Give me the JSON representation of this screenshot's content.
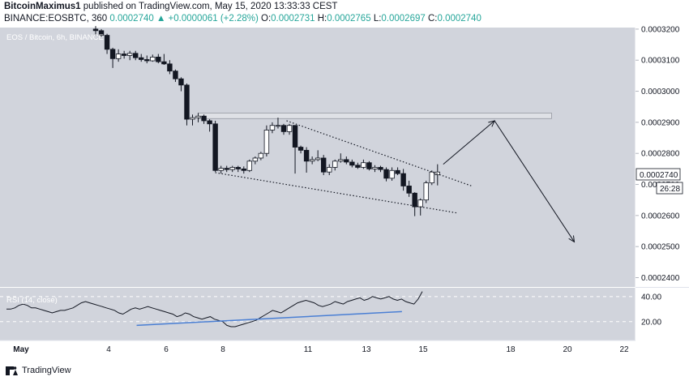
{
  "header": {
    "author": "BitcoinMaximus1",
    "published": "published on TradingView.com, May 15, 2020 13:33:33 CEST",
    "symbol": "BINANCE:EOSBTC, 360",
    "price": "0.0002740",
    "change": "▲ +0.0000061 (+2.28%)",
    "o_label": "O:",
    "o_value": "0.0002731",
    "h_label": "H:",
    "h_value": "0.0002765",
    "l_label": "L:",
    "l_value": "0.0002697",
    "c_label": "C:",
    "c_value": "0.0002740"
  },
  "footer": {
    "brand": "TradingView"
  },
  "colors": {
    "background": "#d1d4dc",
    "up_candle": "#ffffff",
    "down_candle": "#131722",
    "rsi_line": "#131722",
    "divergence_line": "#4a7fd4",
    "box_fill": "#dfe1e6"
  },
  "chart_data": {
    "type": "candlestick",
    "title": "EOS / Bitcoin, 6h, BINANCE",
    "y_ticks": [
      "0.0003200",
      "0.0003100",
      "0.0003000",
      "0.0002900",
      "0.0002800",
      "0.0002700",
      "0.0002600",
      "0.0002500",
      "0.0002400"
    ],
    "ylim": [
      0.000237,
      0.0003205
    ],
    "current_price_label": "0.0002740",
    "countdown_label": "26:28",
    "x_ticks": [
      "May",
      "4",
      "6",
      "8",
      "11",
      "13",
      "15",
      "18",
      "20",
      "22"
    ],
    "candles": [
      {
        "o": 0.00032,
        "h": 0.000321,
        "l": 0.000318,
        "c": 0.0003195
      },
      {
        "o": 0.0003195,
        "h": 0.00032,
        "l": 0.0003175,
        "c": 0.000318
      },
      {
        "o": 0.000318,
        "h": 0.0003185,
        "l": 0.000312,
        "c": 0.0003135
      },
      {
        "o": 0.0003135,
        "h": 0.000314,
        "l": 0.0003075,
        "c": 0.0003105
      },
      {
        "o": 0.0003105,
        "h": 0.0003135,
        "l": 0.0003095,
        "c": 0.000312
      },
      {
        "o": 0.000312,
        "h": 0.000313,
        "l": 0.0003105,
        "c": 0.0003115
      },
      {
        "o": 0.0003115,
        "h": 0.000313,
        "l": 0.00031,
        "c": 0.0003122
      },
      {
        "o": 0.0003122,
        "h": 0.000313,
        "l": 0.00031,
        "c": 0.0003108
      },
      {
        "o": 0.0003108,
        "h": 0.000312,
        "l": 0.0003095,
        "c": 0.0003102
      },
      {
        "o": 0.0003102,
        "h": 0.0003115,
        "l": 0.000309,
        "c": 0.0003098
      },
      {
        "o": 0.0003098,
        "h": 0.0003118,
        "l": 0.0003095,
        "c": 0.000311
      },
      {
        "o": 0.000311,
        "h": 0.000312,
        "l": 0.000309,
        "c": 0.0003095
      },
      {
        "o": 0.0003095,
        "h": 0.000312,
        "l": 0.0003085,
        "c": 0.0003088
      },
      {
        "o": 0.0003088,
        "h": 0.00031,
        "l": 0.0003055,
        "c": 0.0003065
      },
      {
        "o": 0.0003065,
        "h": 0.000307,
        "l": 0.000303,
        "c": 0.000304
      },
      {
        "o": 0.000304,
        "h": 0.0003045,
        "l": 0.0003,
        "c": 0.000302
      },
      {
        "o": 0.000302,
        "h": 0.0003025,
        "l": 0.000289,
        "c": 0.000291
      },
      {
        "o": 0.000291,
        "h": 0.0002925,
        "l": 0.000289,
        "c": 0.0002915
      },
      {
        "o": 0.0002915,
        "h": 0.000293,
        "l": 0.00029,
        "c": 0.000292
      },
      {
        "o": 0.000292,
        "h": 0.0002925,
        "l": 0.0002895,
        "c": 0.0002905
      },
      {
        "o": 0.0002905,
        "h": 0.000291,
        "l": 0.000287,
        "c": 0.0002895
      },
      {
        "o": 0.0002895,
        "h": 0.0002905,
        "l": 0.000274,
        "c": 0.0002745
      },
      {
        "o": 0.0002745,
        "h": 0.000276,
        "l": 0.0002735,
        "c": 0.0002752
      },
      {
        "o": 0.0002752,
        "h": 0.000276,
        "l": 0.000274,
        "c": 0.0002748
      },
      {
        "o": 0.0002748,
        "h": 0.000276,
        "l": 0.000274,
        "c": 0.0002755
      },
      {
        "o": 0.0002755,
        "h": 0.000276,
        "l": 0.000274,
        "c": 0.000275
      },
      {
        "o": 0.000275,
        "h": 0.0002758,
        "l": 0.0002735,
        "c": 0.0002745
      },
      {
        "o": 0.0002745,
        "h": 0.000278,
        "l": 0.000274,
        "c": 0.0002775
      },
      {
        "o": 0.0002775,
        "h": 0.000279,
        "l": 0.0002765,
        "c": 0.0002785
      },
      {
        "o": 0.0002785,
        "h": 0.0002805,
        "l": 0.0002778,
        "c": 0.00028
      },
      {
        "o": 0.00028,
        "h": 0.000289,
        "l": 0.000279,
        "c": 0.0002875
      },
      {
        "o": 0.0002875,
        "h": 0.00029,
        "l": 0.0002865,
        "c": 0.000289
      },
      {
        "o": 0.000289,
        "h": 0.0002915,
        "l": 0.000288,
        "c": 0.000289
      },
      {
        "o": 0.000289,
        "h": 0.0002895,
        "l": 0.000286,
        "c": 0.000287
      },
      {
        "o": 0.000287,
        "h": 0.0002895,
        "l": 0.000286,
        "c": 0.000289
      },
      {
        "o": 0.000289,
        "h": 0.000289,
        "l": 0.0002735,
        "c": 0.000282
      },
      {
        "o": 0.000282,
        "h": 0.0002825,
        "l": 0.00028,
        "c": 0.000281
      },
      {
        "o": 0.000281,
        "h": 0.000282,
        "l": 0.0002738,
        "c": 0.0002775
      },
      {
        "o": 0.0002775,
        "h": 0.000279,
        "l": 0.0002765,
        "c": 0.000278
      },
      {
        "o": 0.000278,
        "h": 0.000281,
        "l": 0.0002775,
        "c": 0.0002785
      },
      {
        "o": 0.0002785,
        "h": 0.0002795,
        "l": 0.000273,
        "c": 0.000274
      },
      {
        "o": 0.000274,
        "h": 0.0002765,
        "l": 0.000273,
        "c": 0.0002755
      },
      {
        "o": 0.0002755,
        "h": 0.000278,
        "l": 0.0002745,
        "c": 0.0002775
      },
      {
        "o": 0.0002775,
        "h": 0.00028,
        "l": 0.000277,
        "c": 0.000278
      },
      {
        "o": 0.000278,
        "h": 0.000279,
        "l": 0.0002765,
        "c": 0.0002772
      },
      {
        "o": 0.0002772,
        "h": 0.000278,
        "l": 0.0002755,
        "c": 0.0002762
      },
      {
        "o": 0.0002762,
        "h": 0.000277,
        "l": 0.000275,
        "c": 0.0002755
      },
      {
        "o": 0.0002755,
        "h": 0.000278,
        "l": 0.000275,
        "c": 0.000277
      },
      {
        "o": 0.000277,
        "h": 0.0002775,
        "l": 0.0002745,
        "c": 0.000275
      },
      {
        "o": 0.000275,
        "h": 0.0002762,
        "l": 0.000274,
        "c": 0.0002755
      },
      {
        "o": 0.0002755,
        "h": 0.000276,
        "l": 0.000274,
        "c": 0.0002748
      },
      {
        "o": 0.0002748,
        "h": 0.0002755,
        "l": 0.000271,
        "c": 0.000272
      },
      {
        "o": 0.000272,
        "h": 0.0002755,
        "l": 0.0002712,
        "c": 0.0002745
      },
      {
        "o": 0.0002745,
        "h": 0.0002755,
        "l": 0.000273,
        "c": 0.0002735
      },
      {
        "o": 0.0002735,
        "h": 0.000275,
        "l": 0.000268,
        "c": 0.0002695
      },
      {
        "o": 0.0002695,
        "h": 0.0002712,
        "l": 0.000266,
        "c": 0.0002672
      },
      {
        "o": 0.0002672,
        "h": 0.0002675,
        "l": 0.0002598,
        "c": 0.0002628
      },
      {
        "o": 0.0002628,
        "h": 0.0002655,
        "l": 0.00026,
        "c": 0.000265
      },
      {
        "o": 0.000265,
        "h": 0.0002712,
        "l": 0.000264,
        "c": 0.0002705
      },
      {
        "o": 0.0002705,
        "h": 0.0002745,
        "l": 0.0002698,
        "c": 0.000274
      },
      {
        "o": 0.0002731,
        "h": 0.0002765,
        "l": 0.0002697,
        "c": 0.000274
      }
    ],
    "resistance_zone": {
      "top": 0.000293,
      "bottom": 0.0002912,
      "from_candle": 18,
      "to_candle": 80
    },
    "wedge_upper": [
      {
        "i": 33.5,
        "p": 0.0002905
      },
      {
        "i": 66,
        "p": 0.0002695
      }
    ],
    "wedge_lower": [
      {
        "i": 21,
        "p": 0.0002738
      },
      {
        "i": 63.5,
        "p": 0.0002608
      }
    ],
    "projection": [
      {
        "i": 61,
        "p": 0.0002765
      },
      {
        "i": 70,
        "p": 0.0002905
      },
      {
        "i": 84,
        "p": 0.0002515
      }
    ],
    "rsi": {
      "label": "RSI (14, close)",
      "y_ticks": [
        "40.00",
        "20.00"
      ],
      "ylim": [
        5,
        47
      ],
      "values": [
        30,
        30,
        31,
        33,
        34,
        33,
        31,
        31,
        30,
        29,
        28,
        27,
        28,
        29,
        29,
        30,
        31,
        33,
        35,
        36,
        35,
        34,
        33,
        32,
        31,
        30,
        29,
        27,
        26,
        28,
        30,
        31,
        30,
        31,
        32,
        31,
        30,
        29,
        28,
        27,
        26,
        24,
        25,
        27,
        26,
        24,
        23,
        22,
        23,
        24,
        22,
        21,
        20,
        17,
        16,
        16,
        17,
        18,
        19,
        20,
        21,
        23,
        25,
        27,
        29,
        28,
        27,
        29,
        31,
        33,
        35,
        36,
        37,
        36,
        35,
        33,
        32,
        33,
        34,
        36,
        35,
        34,
        36,
        37,
        38,
        39,
        37,
        38,
        40,
        39,
        38,
        39,
        40,
        38,
        37,
        38,
        36,
        35,
        34,
        38,
        44
      ],
      "divergence": [
        {
          "from": 0.313,
          "value_from": 17,
          "to": 0.951,
          "value_to": 28
        }
      ]
    }
  }
}
